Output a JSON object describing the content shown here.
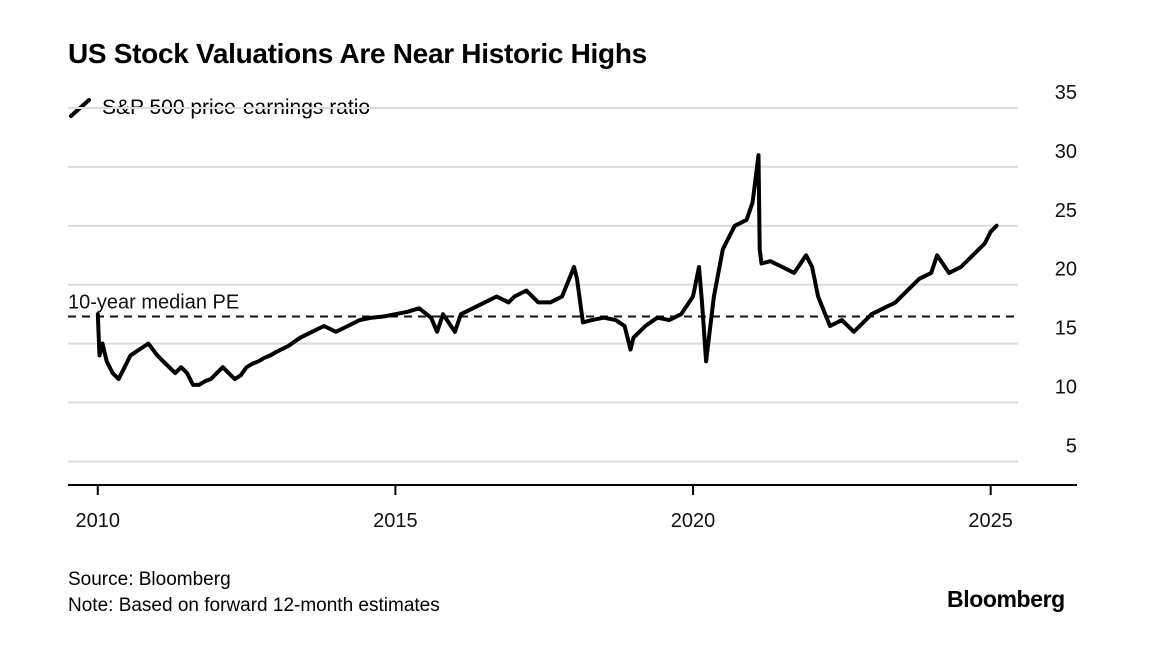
{
  "chart_data": {
    "type": "line",
    "title": "US Stock Valuations Are Near Historic Highs",
    "series": [
      {
        "name": "S&P 500 price-earnings ratio",
        "x": [
          2010.0,
          2010.03,
          2010.08,
          2010.15,
          2010.25,
          2010.35,
          2010.45,
          2010.55,
          2010.7,
          2010.85,
          2011.0,
          2011.1,
          2011.2,
          2011.3,
          2011.4,
          2011.5,
          2011.6,
          2011.7,
          2011.8,
          2011.9,
          2012.0,
          2012.1,
          2012.2,
          2012.3,
          2012.4,
          2012.5,
          2012.6,
          2012.7,
          2012.8,
          2012.9,
          2013.0,
          2013.2,
          2013.4,
          2013.6,
          2013.8,
          2014.0,
          2014.2,
          2014.4,
          2014.6,
          2014.8,
          2015.0,
          2015.2,
          2015.4,
          2015.6,
          2015.7,
          2015.8,
          2016.0,
          2016.1,
          2016.3,
          2016.5,
          2016.7,
          2016.9,
          2017.0,
          2017.2,
          2017.4,
          2017.6,
          2017.8,
          2018.0,
          2018.05,
          2018.15,
          2018.3,
          2018.5,
          2018.7,
          2018.85,
          2018.95,
          2019.0,
          2019.2,
          2019.4,
          2019.6,
          2019.8,
          2020.0,
          2020.1,
          2020.15,
          2020.22,
          2020.35,
          2020.5,
          2020.7,
          2020.9,
          2021.0,
          2021.1,
          2021.12,
          2021.15,
          2021.3,
          2021.5,
          2021.7,
          2021.9,
          2022.0,
          2022.1,
          2022.3,
          2022.5,
          2022.7,
          2022.8,
          2023.0,
          2023.2,
          2023.4,
          2023.6,
          2023.8,
          2024.0,
          2024.1,
          2024.3,
          2024.5,
          2024.7,
          2024.9,
          2025.0,
          2025.1
        ],
        "y": [
          17.5,
          14.0,
          15.0,
          13.5,
          12.5,
          12.0,
          13.0,
          14.0,
          14.5,
          15.0,
          14.0,
          13.5,
          13.0,
          12.5,
          13.0,
          12.5,
          11.5,
          11.5,
          11.8,
          12.0,
          12.5,
          13.0,
          12.5,
          12.0,
          12.3,
          13.0,
          13.3,
          13.5,
          13.8,
          14.0,
          14.3,
          14.8,
          15.5,
          16.0,
          16.5,
          16.0,
          16.5,
          17.0,
          17.2,
          17.3,
          17.5,
          17.7,
          18.0,
          17.2,
          16.0,
          17.5,
          16.0,
          17.5,
          18.0,
          18.5,
          19.0,
          18.5,
          19.0,
          19.5,
          18.5,
          18.5,
          19.0,
          21.5,
          20.5,
          16.8,
          17.0,
          17.2,
          17.0,
          16.5,
          14.5,
          15.5,
          16.5,
          17.2,
          17.0,
          17.5,
          19.0,
          21.5,
          18.5,
          13.5,
          19.0,
          23.0,
          25.0,
          25.5,
          27.0,
          31.0,
          23.0,
          21.8,
          22.0,
          21.5,
          21.0,
          22.5,
          21.5,
          19.0,
          16.5,
          17.0,
          16.0,
          16.5,
          17.5,
          18.0,
          18.5,
          19.5,
          20.5,
          21.0,
          22.5,
          21.0,
          21.5,
          22.5,
          23.5,
          24.5,
          25.0
        ]
      }
    ],
    "reference_line": {
      "label": "10-year median PE",
      "value": 17.3
    },
    "x_ticks": [
      2010,
      2015,
      2020,
      2025
    ],
    "y_ticks": [
      5,
      10,
      15,
      20,
      25,
      30,
      35
    ],
    "xlim": [
      2009.5,
      2026.45
    ],
    "ylim": [
      3,
      35
    ],
    "xlabel": "",
    "ylabel": "",
    "y_axis_side": "right",
    "grid": "horizontal",
    "legend_position": "top-left",
    "line_color": "#000000",
    "grid_color": "#dcdcdc"
  },
  "footer": {
    "source": "Source: Bloomberg",
    "note": "Note: Based on forward 12-month estimates",
    "logo_text": "Bloomberg"
  }
}
